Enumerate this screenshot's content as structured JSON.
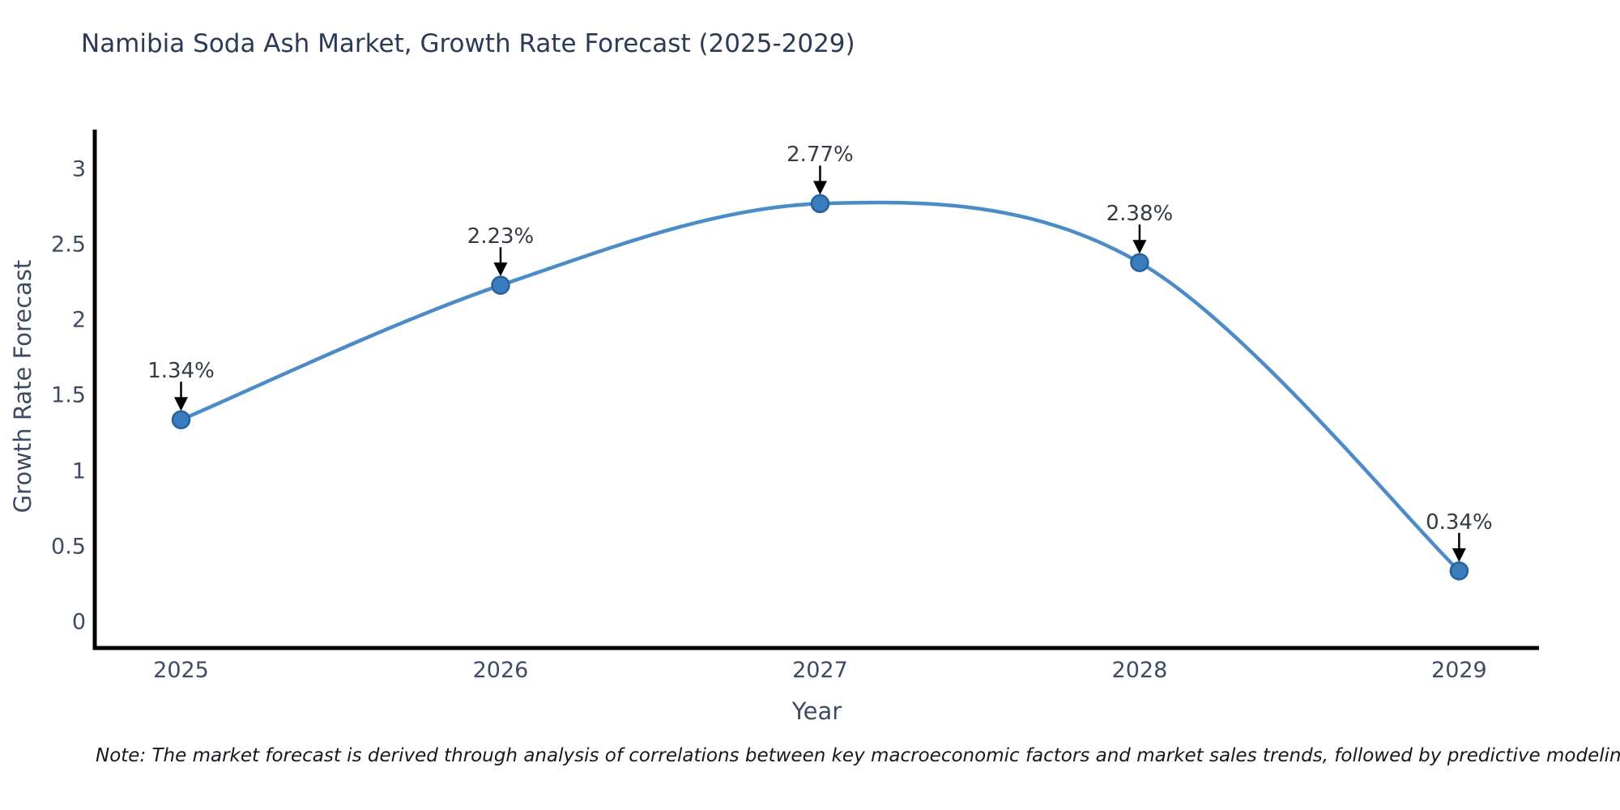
{
  "title": "Namibia Soda Ash Market, Growth Rate Forecast (2025-2029)",
  "note": "Note: The market forecast is derived through analysis of correlations between key macroeconomic factors and market sales trends, followed by predictive modeling to project future sales",
  "chart_data": {
    "type": "line",
    "x": [
      2025,
      2026,
      2027,
      2028,
      2029
    ],
    "series": [
      {
        "name": "Growth Rate Forecast",
        "values": [
          1.34,
          2.23,
          2.77,
          2.38,
          0.34
        ]
      }
    ],
    "point_labels": [
      "1.34%",
      "2.23%",
      "2.77%",
      "2.38%",
      "0.34%"
    ],
    "title": "Namibia Soda Ash Market, Growth Rate Forecast (2025-2029)",
    "xlabel": "Year",
    "ylabel": "Growth Rate Forecast",
    "xtick_labels": [
      "2025",
      "2026",
      "2027",
      "2028",
      "2029"
    ],
    "yticks": [
      0,
      0.5,
      1,
      1.5,
      2,
      2.5,
      3
    ],
    "ytick_labels": [
      "0",
      "0.5",
      "1",
      "1.5",
      "2",
      "2.5",
      "3"
    ],
    "xlim": [
      2024.73,
      2029.25
    ],
    "ylim": [
      -0.17,
      3.26
    ],
    "grid": false,
    "legend": "none",
    "line_shape": "spline",
    "colors": {
      "line": "#4b8bc8",
      "marker_fill": "#3a7cbd",
      "marker_edge": "#27619b",
      "axis": "#000000",
      "annotation_arrow": "#000000",
      "annotation_text": "#353b44",
      "tick_text": "#3d4b63",
      "title_text": "#2b3a55"
    }
  }
}
